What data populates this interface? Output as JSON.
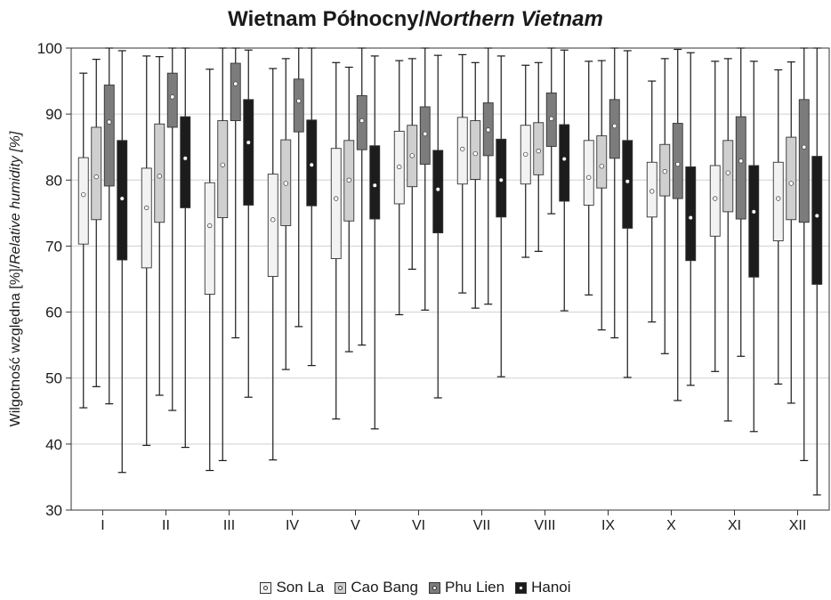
{
  "chart_data": {
    "type": "boxplot",
    "title_regular": "Wietnam Północny/",
    "title_italic": "Northern Vietnam",
    "ylabel_regular": "Wilgotność względna [%]/",
    "ylabel_italic": "Relative humidity [%]",
    "xlabel": "",
    "ylim": [
      30,
      100
    ],
    "yticks": [
      30,
      40,
      50,
      60,
      70,
      80,
      90,
      100
    ],
    "grid": "horizontal",
    "legend_position": "bottom",
    "categories": [
      "I",
      "II",
      "III",
      "IV",
      "V",
      "VI",
      "VII",
      "VIII",
      "IX",
      "X",
      "XI",
      "XII"
    ],
    "series": [
      {
        "name": "Son La",
        "color": "#f2f2f2",
        "dot_color": "#ffffff",
        "boxes": [
          {
            "min": 45.5,
            "q1": 70.3,
            "median": 77.8,
            "q3": 83.4,
            "max": 96.2
          },
          {
            "min": 39.8,
            "q1": 66.7,
            "median": 75.8,
            "q3": 81.8,
            "max": 98.8
          },
          {
            "min": 36.0,
            "q1": 62.7,
            "median": 73.1,
            "q3": 79.6,
            "max": 96.8
          },
          {
            "min": 37.6,
            "q1": 65.4,
            "median": 74.0,
            "q3": 80.9,
            "max": 96.9
          },
          {
            "min": 43.8,
            "q1": 68.1,
            "median": 77.2,
            "q3": 84.8,
            "max": 97.8
          },
          {
            "min": 59.6,
            "q1": 76.4,
            "median": 82.0,
            "q3": 87.4,
            "max": 98.1
          },
          {
            "min": 62.9,
            "q1": 79.4,
            "median": 84.7,
            "q3": 89.5,
            "max": 99.0
          },
          {
            "min": 68.3,
            "q1": 79.4,
            "median": 83.9,
            "q3": 88.3,
            "max": 97.4
          },
          {
            "min": 62.6,
            "q1": 76.2,
            "median": 80.4,
            "q3": 86.0,
            "max": 98.0
          },
          {
            "min": 58.5,
            "q1": 74.4,
            "median": 78.3,
            "q3": 82.7,
            "max": 95.0
          },
          {
            "min": 51.0,
            "q1": 71.5,
            "median": 77.2,
            "q3": 82.2,
            "max": 98.0
          },
          {
            "min": 49.1,
            "q1": 70.8,
            "median": 77.2,
            "q3": 82.7,
            "max": 96.7
          }
        ]
      },
      {
        "name": "Cao Bang",
        "color": "#cfcfcf",
        "dot_color": "#ffffff",
        "boxes": [
          {
            "min": 48.7,
            "q1": 74.0,
            "median": 80.5,
            "q3": 88.0,
            "max": 98.3
          },
          {
            "min": 47.4,
            "q1": 73.6,
            "median": 80.6,
            "q3": 88.5,
            "max": 98.7
          },
          {
            "min": 37.5,
            "q1": 74.3,
            "median": 82.3,
            "q3": 89.0,
            "max": 100.0
          },
          {
            "min": 51.3,
            "q1": 73.1,
            "median": 79.5,
            "q3": 86.1,
            "max": 98.4
          },
          {
            "min": 54.0,
            "q1": 73.8,
            "median": 80.0,
            "q3": 86.0,
            "max": 97.1
          },
          {
            "min": 66.5,
            "q1": 79.0,
            "median": 83.7,
            "q3": 88.3,
            "max": 98.4
          },
          {
            "min": 60.6,
            "q1": 80.1,
            "median": 84.0,
            "q3": 89.0,
            "max": 97.8
          },
          {
            "min": 69.2,
            "q1": 80.8,
            "median": 84.4,
            "q3": 88.7,
            "max": 97.8
          },
          {
            "min": 57.3,
            "q1": 78.8,
            "median": 82.1,
            "q3": 86.7,
            "max": 98.1
          },
          {
            "min": 53.7,
            "q1": 77.6,
            "median": 81.3,
            "q3": 85.4,
            "max": 98.4
          },
          {
            "min": 43.5,
            "q1": 75.2,
            "median": 81.1,
            "q3": 86.0,
            "max": 98.4
          },
          {
            "min": 46.2,
            "q1": 74.0,
            "median": 79.5,
            "q3": 86.5,
            "max": 97.9
          }
        ]
      },
      {
        "name": "Phu Lien",
        "color": "#7c7c7c",
        "dot_color": "#ffffff",
        "boxes": [
          {
            "min": 46.1,
            "q1": 79.1,
            "median": 88.8,
            "q3": 94.4,
            "max": 100.0
          },
          {
            "min": 45.1,
            "q1": 88.0,
            "median": 92.6,
            "q3": 96.2,
            "max": 100.0
          },
          {
            "min": 56.1,
            "q1": 89.0,
            "median": 94.6,
            "q3": 97.7,
            "max": 100.0
          },
          {
            "min": 57.8,
            "q1": 87.3,
            "median": 92.0,
            "q3": 95.3,
            "max": 100.0
          },
          {
            "min": 55.0,
            "q1": 84.6,
            "median": 89.0,
            "q3": 92.8,
            "max": 100.0
          },
          {
            "min": 60.3,
            "q1": 82.4,
            "median": 87.0,
            "q3": 91.1,
            "max": 100.0
          },
          {
            "min": 61.2,
            "q1": 83.7,
            "median": 87.6,
            "q3": 91.7,
            "max": 100.0
          },
          {
            "min": 74.9,
            "q1": 85.1,
            "median": 89.3,
            "q3": 93.2,
            "max": 100.0
          },
          {
            "min": 56.1,
            "q1": 83.3,
            "median": 88.2,
            "q3": 92.2,
            "max": 100.0
          },
          {
            "min": 46.6,
            "q1": 77.2,
            "median": 82.4,
            "q3": 88.6,
            "max": 99.8
          },
          {
            "min": 53.3,
            "q1": 74.1,
            "median": 82.9,
            "q3": 89.6,
            "max": 100.0
          },
          {
            "min": 37.5,
            "q1": 73.6,
            "median": 85.0,
            "q3": 92.2,
            "max": 100.0
          }
        ]
      },
      {
        "name": "Hanoi",
        "color": "#1c1c1c",
        "dot_color": "#ffffff",
        "boxes": [
          {
            "min": 35.7,
            "q1": 67.9,
            "median": 77.2,
            "q3": 86.0,
            "max": 99.6
          },
          {
            "min": 39.5,
            "q1": 75.8,
            "median": 83.3,
            "q3": 89.6,
            "max": 100.0
          },
          {
            "min": 47.1,
            "q1": 76.2,
            "median": 85.7,
            "q3": 92.2,
            "max": 99.7
          },
          {
            "min": 51.9,
            "q1": 76.1,
            "median": 82.3,
            "q3": 89.1,
            "max": 100.0
          },
          {
            "min": 42.3,
            "q1": 74.1,
            "median": 79.2,
            "q3": 85.2,
            "max": 98.8
          },
          {
            "min": 47.0,
            "q1": 72.0,
            "median": 78.6,
            "q3": 84.5,
            "max": 98.9
          },
          {
            "min": 50.2,
            "q1": 74.4,
            "median": 80.0,
            "q3": 86.2,
            "max": 98.8
          },
          {
            "min": 60.2,
            "q1": 76.8,
            "median": 83.2,
            "q3": 88.4,
            "max": 99.7
          },
          {
            "min": 50.1,
            "q1": 72.7,
            "median": 79.8,
            "q3": 86.0,
            "max": 99.6
          },
          {
            "min": 48.9,
            "q1": 67.8,
            "median": 74.3,
            "q3": 82.0,
            "max": 99.3
          },
          {
            "min": 41.9,
            "q1": 65.3,
            "median": 75.2,
            "q3": 82.2,
            "max": 98.0
          },
          {
            "min": 32.3,
            "q1": 64.2,
            "median": 74.6,
            "q3": 83.6,
            "max": 100.0
          }
        ]
      }
    ]
  }
}
